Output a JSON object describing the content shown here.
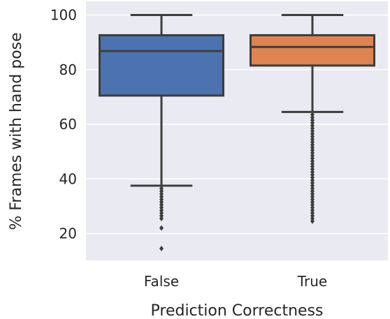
{
  "chart_data": {
    "type": "box",
    "xlabel": "Prediction Correctness",
    "ylabel": "% Frames with hand pose",
    "ylim": [
      10,
      102.5
    ],
    "yticks": [
      20,
      40,
      60,
      80,
      100
    ],
    "grid": true,
    "categories": [
      "False",
      "True"
    ],
    "boxes": [
      {
        "category": "False",
        "color": "#4c72b0",
        "whisker_low": 37.5,
        "q1": 70.5,
        "median": 86.8,
        "q3": 92.6,
        "whisker_high": 100,
        "outliers": [
          36.5,
          35.5,
          34.5,
          33.5,
          32.5,
          31.5,
          30.5,
          29.5,
          28.5,
          27.5,
          26.5,
          25.5,
          22.0,
          14.5
        ]
      },
      {
        "category": "True",
        "color": "#dd8452",
        "whisker_low": 64.5,
        "q1": 81.5,
        "median": 88.3,
        "q3": 92.6,
        "whisker_high": 100,
        "outliers": [
          63.5,
          62.5,
          61.5,
          60.5,
          59.5,
          58.5,
          57.5,
          56.5,
          55.5,
          54.5,
          53.5,
          52.5,
          51.5,
          50.5,
          49.5,
          48.5,
          47.5,
          46.5,
          45.5,
          44.5,
          43.5,
          42.5,
          41.5,
          40.5,
          39.5,
          38.5,
          37.5,
          36.5,
          35.5,
          34.5,
          33.5,
          32.5,
          31.5,
          30.5,
          29.5,
          28.5,
          27.5,
          26.5,
          25.5,
          24.5
        ]
      }
    ]
  }
}
